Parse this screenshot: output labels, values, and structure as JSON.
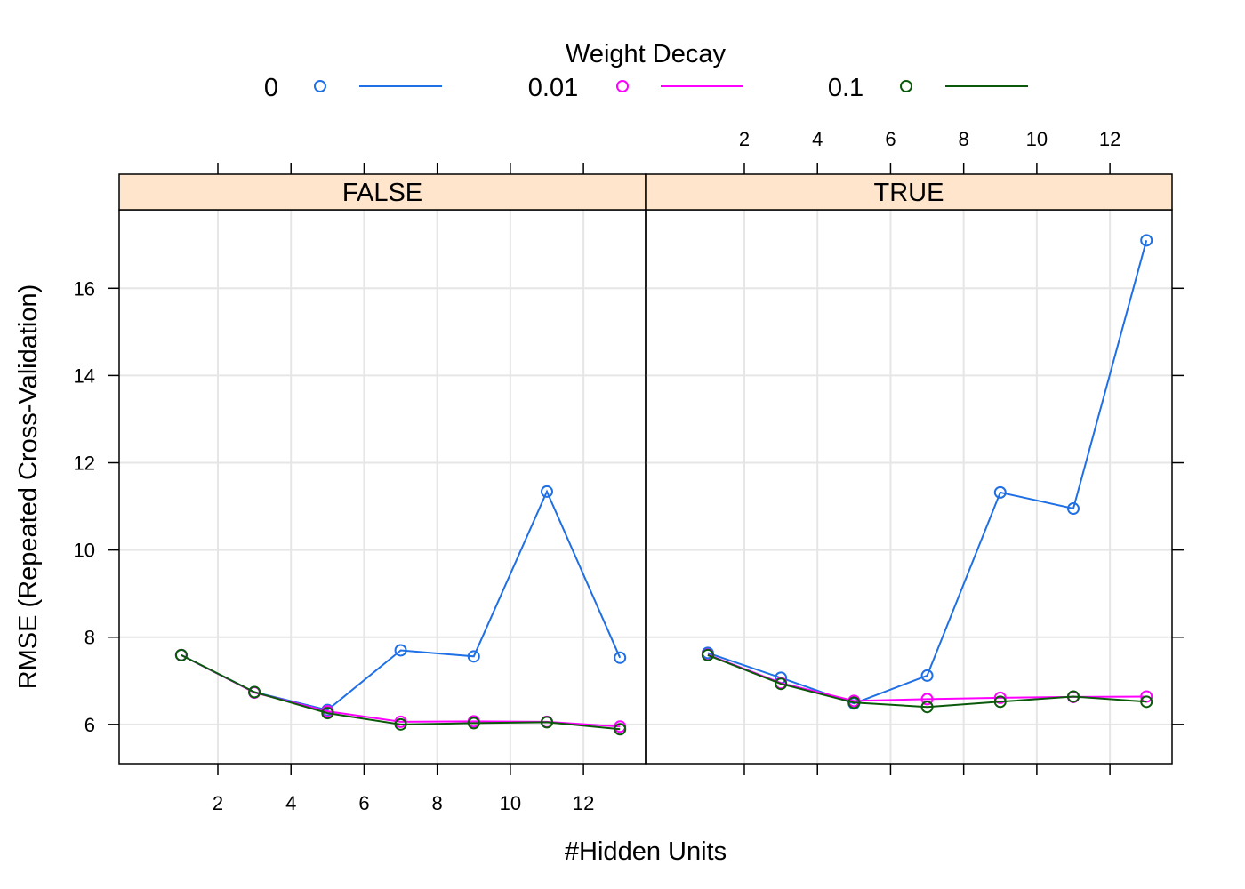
{
  "chart_data": {
    "type": "line",
    "layout": "faceted-2-panels",
    "legend": {
      "title": "Weight Decay",
      "placement": "top"
    },
    "xlabel": "#Hidden Units",
    "ylabel": "RMSE (Repeated Cross-Validation)",
    "x": [
      1,
      3,
      5,
      7,
      9,
      11,
      13
    ],
    "xlim": [
      -0.7,
      13.7
    ],
    "ylim": [
      5.1,
      17.8
    ],
    "x_ticks": [
      2,
      4,
      6,
      8,
      10,
      12
    ],
    "y_ticks": [
      6,
      8,
      10,
      12,
      14,
      16
    ],
    "grid": true,
    "panels": [
      {
        "label": "FALSE",
        "series": [
          {
            "name": "0",
            "color": "#1f6fe5",
            "values": [
              7.59,
              6.74,
              6.33,
              7.7,
              7.56,
              11.34,
              7.53
            ]
          },
          {
            "name": "0.01",
            "color": "#ff00ff",
            "values": [
              7.59,
              6.73,
              6.3,
              6.06,
              6.07,
              6.06,
              5.95
            ]
          },
          {
            "name": "0.1",
            "color": "#0b5a0b",
            "values": [
              7.59,
              6.74,
              6.26,
              6.0,
              6.03,
              6.05,
              5.89
            ]
          }
        ]
      },
      {
        "label": "TRUE",
        "series": [
          {
            "name": "0",
            "color": "#1f6fe5",
            "values": [
              7.64,
              7.07,
              6.48,
              7.12,
              11.32,
              10.95,
              17.1
            ]
          },
          {
            "name": "0.01",
            "color": "#ff00ff",
            "values": [
              7.6,
              6.95,
              6.54,
              6.58,
              6.61,
              6.63,
              6.64
            ]
          },
          {
            "name": "0.1",
            "color": "#0b5a0b",
            "values": [
              7.59,
              6.93,
              6.5,
              6.4,
              6.52,
              6.64,
              6.52
            ]
          }
        ]
      }
    ]
  }
}
